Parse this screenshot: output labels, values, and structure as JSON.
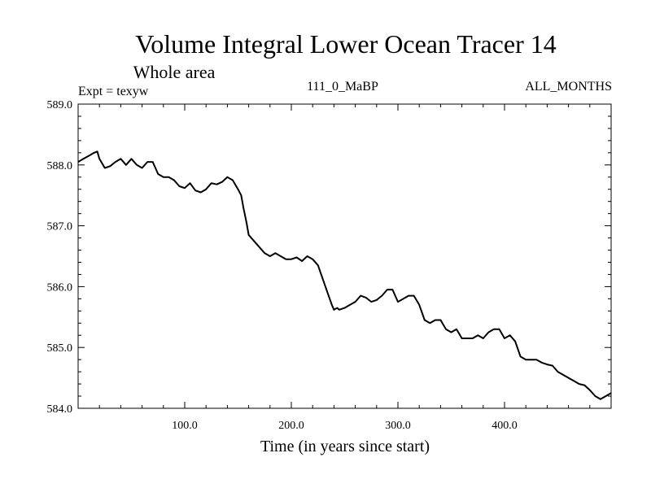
{
  "chart_data": {
    "type": "line",
    "title": "Volume Integral Lower Ocean Tracer 14",
    "subtitle": "Whole area",
    "experiment_label": "Expt = texyw",
    "period_label": "111_0_MaBP",
    "months_label": "ALL_MONTHS",
    "xlabel": "Time (in years since start)",
    "ylabel": "",
    "xlim": [
      0,
      500
    ],
    "ylim": [
      584.0,
      589.0
    ],
    "x_ticks": [
      100,
      200,
      300,
      400
    ],
    "x_tick_labels": [
      "100.0",
      "200.0",
      "300.0",
      "400.0"
    ],
    "y_ticks": [
      584,
      585,
      586,
      587,
      588,
      589
    ],
    "y_tick_labels": [
      "584.0",
      "585.0",
      "586.0",
      "587.0",
      "588.0",
      "589.0"
    ],
    "grid": false,
    "line_color": "#000000",
    "series": [
      {
        "x": [
          0,
          5,
          10,
          15,
          18,
          20,
          25,
          30,
          35,
          40,
          45,
          50,
          55,
          60,
          65,
          70,
          75,
          80,
          85,
          90,
          95,
          100,
          105,
          110,
          115,
          120,
          125,
          130,
          135,
          140,
          145,
          150,
          153,
          155,
          158,
          160,
          165,
          170,
          175,
          180,
          185,
          190,
          195,
          200,
          205,
          210,
          215,
          220,
          225,
          230,
          235,
          238,
          240,
          243,
          245,
          250,
          255,
          260,
          265,
          270,
          275,
          280,
          285,
          290,
          295,
          300,
          305,
          310,
          315,
          320,
          325,
          330,
          335,
          340,
          345,
          350,
          355,
          360,
          365,
          370,
          375,
          380,
          385,
          390,
          395,
          400,
          405,
          410,
          415,
          420,
          425,
          430,
          435,
          440,
          445,
          450,
          455,
          460,
          465,
          470,
          475,
          480,
          485,
          490,
          495,
          500
        ],
        "y": [
          588.05,
          588.1,
          588.15,
          588.2,
          588.22,
          588.1,
          587.95,
          587.98,
          588.05,
          588.1,
          588.0,
          588.1,
          588.0,
          587.95,
          588.05,
          588.05,
          587.85,
          587.8,
          587.8,
          587.75,
          587.65,
          587.62,
          587.7,
          587.58,
          587.55,
          587.6,
          587.7,
          587.68,
          587.72,
          587.8,
          587.75,
          587.6,
          587.5,
          587.3,
          587.05,
          586.85,
          586.75,
          586.65,
          586.55,
          586.5,
          586.55,
          586.5,
          586.45,
          586.45,
          586.48,
          586.42,
          586.5,
          586.45,
          586.35,
          586.1,
          585.85,
          585.7,
          585.62,
          585.65,
          585.62,
          585.65,
          585.7,
          585.75,
          585.85,
          585.82,
          585.75,
          585.78,
          585.85,
          585.95,
          585.95,
          585.75,
          585.8,
          585.85,
          585.85,
          585.7,
          585.45,
          585.4,
          585.45,
          585.45,
          585.3,
          585.25,
          585.3,
          585.15,
          585.15,
          585.15,
          585.2,
          585.15,
          585.25,
          585.3,
          585.3,
          585.15,
          585.2,
          585.1,
          584.85,
          584.8,
          584.8,
          584.8,
          584.75,
          584.72,
          584.7,
          584.6,
          584.55,
          584.5,
          584.45,
          584.4,
          584.38,
          584.3,
          584.2,
          584.15,
          584.2,
          584.25
        ]
      }
    ]
  }
}
